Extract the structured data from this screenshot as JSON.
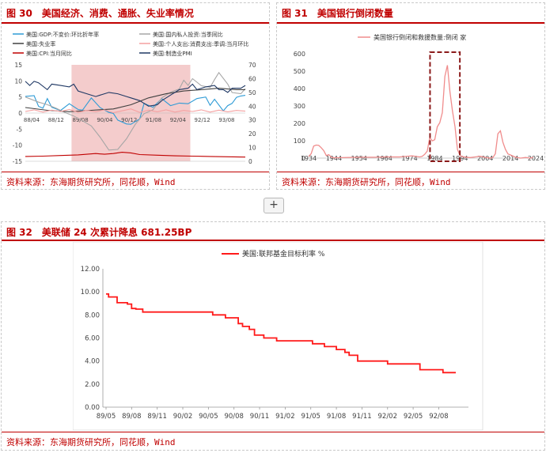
{
  "plus_button": {
    "label": "+"
  },
  "fig30": {
    "number": "图 30",
    "title": "美国经济、消费、通胀、失业率情况",
    "source": "资料来源：东海期货研究所，同花顺，Wind",
    "legend": [
      {
        "label": "美国:GDP:不变价:环比折年率",
        "color": "#2e9bd6"
      },
      {
        "label": "美国:国内私人投资:当季同比",
        "color": "#a6a6a6"
      },
      {
        "label": "美国:失业率",
        "color": "#404040"
      },
      {
        "label": "美国:个人支出:消费支出:季调:当月环比",
        "color": "#f4a0a0"
      },
      {
        "label": "美国:CPI:当月同比",
        "color": "#c00000"
      },
      {
        "label": "美国:制造业PMI",
        "color": "#1f3864"
      }
    ],
    "chart_data": {
      "type": "line",
      "x_ticks": [
        "88/04",
        "88/12",
        "89/08",
        "90/04",
        "90/12",
        "91/08",
        "92/04",
        "92/12",
        "93/08"
      ],
      "left_axis": {
        "ylim": [
          -15,
          15
        ],
        "ticks": [
          15,
          10,
          5,
          0,
          -5,
          -10,
          -15
        ]
      },
      "right_axis": {
        "ylim": [
          0,
          70
        ],
        "ticks": [
          70,
          60,
          50,
          40,
          30,
          20,
          10,
          0
        ]
      },
      "shaded_range": [
        "89/03",
        "92/05"
      ],
      "series": [
        {
          "name": "美国:GDP:不变价:环比折年率",
          "axis": "left",
          "color": "#2e9bd6",
          "points": [
            [
              0,
              5.2
            ],
            [
              2,
              5.4
            ],
            [
              3,
              2.1
            ],
            [
              4,
              1.5
            ],
            [
              5,
              4.5
            ],
            [
              6,
              1.8
            ],
            [
              8,
              0.8
            ],
            [
              10,
              2.9
            ],
            [
              12,
              1.1
            ],
            [
              13,
              0.9
            ],
            [
              15,
              4.7
            ],
            [
              17,
              1.7
            ],
            [
              19,
              0.2
            ],
            [
              20,
              -0.1
            ],
            [
              21,
              -2.2
            ],
            [
              23,
              -3.4
            ],
            [
              24,
              -3.5
            ],
            [
              26,
              -1.8
            ],
            [
              27,
              3.0
            ],
            [
              29,
              1.8
            ],
            [
              31,
              4.5
            ],
            [
              33,
              2.3
            ],
            [
              35,
              3.1
            ],
            [
              37,
              2.9
            ],
            [
              39,
              4.5
            ],
            [
              41,
              5.0
            ],
            [
              42,
              2.4
            ],
            [
              43,
              4.3
            ],
            [
              45,
              0.7
            ],
            [
              46,
              2.3
            ],
            [
              47,
              3.0
            ],
            [
              48,
              4.9
            ],
            [
              49,
              5.3
            ],
            [
              50,
              5.5
            ]
          ]
        },
        {
          "name": "美国:国内私人投资:当季同比",
          "axis": "left",
          "color": "#a6a6a6",
          "points": [
            [
              0,
              5.0
            ],
            [
              3,
              3.4
            ],
            [
              5,
              2.6
            ],
            [
              7,
              1.5
            ],
            [
              9,
              0.2
            ],
            [
              11,
              -0.9
            ],
            [
              13,
              -2.4
            ],
            [
              15,
              -4.0
            ],
            [
              17,
              -7.5
            ],
            [
              19,
              -11.5
            ],
            [
              21,
              -11.3
            ],
            [
              23,
              -8.0
            ],
            [
              25,
              -3.5
            ],
            [
              27,
              -0.2
            ],
            [
              29,
              1.0
            ],
            [
              31,
              4.7
            ],
            [
              33,
              6.5
            ],
            [
              35,
              7.5
            ],
            [
              36,
              10.2
            ],
            [
              37,
              8.6
            ],
            [
              38,
              10.7
            ],
            [
              40,
              8.5
            ],
            [
              42,
              8.0
            ],
            [
              43,
              10.4
            ],
            [
              44,
              12.6
            ],
            [
              46,
              9.0
            ],
            [
              47,
              6.4
            ],
            [
              49,
              6.0
            ],
            [
              50,
              7.6
            ]
          ]
        },
        {
          "name": "美国:失业率",
          "axis": "right",
          "color": "#404040",
          "points": [
            [
              0,
              39
            ],
            [
              5,
              37
            ],
            [
              10,
              36
            ],
            [
              15,
              37
            ],
            [
              20,
              38
            ],
            [
              24,
              41
            ],
            [
              28,
              46
            ],
            [
              32,
              49
            ],
            [
              36,
              51
            ],
            [
              40,
              52
            ],
            [
              44,
              53
            ],
            [
              48,
              52
            ],
            [
              50,
              52
            ]
          ]
        },
        {
          "name": "美国:个人支出:消费支出:季调:当月环比",
          "axis": "left",
          "color": "#f4a0a0",
          "points": [
            [
              0,
              0.5
            ],
            [
              2,
              1.0
            ],
            [
              4,
              0.3
            ],
            [
              6,
              0.9
            ],
            [
              8,
              0.5
            ],
            [
              10,
              1.1
            ],
            [
              12,
              0.2
            ],
            [
              14,
              0.8
            ],
            [
              16,
              0.4
            ],
            [
              18,
              1.0
            ],
            [
              20,
              0.1
            ],
            [
              22,
              0.7
            ],
            [
              24,
              1.3
            ],
            [
              26,
              0.2
            ],
            [
              28,
              0.9
            ],
            [
              30,
              0.4
            ],
            [
              32,
              1.0
            ],
            [
              34,
              0.3
            ],
            [
              36,
              0.8
            ],
            [
              38,
              0.5
            ],
            [
              40,
              1.0
            ],
            [
              42,
              0.3
            ],
            [
              44,
              0.9
            ],
            [
              46,
              0.4
            ],
            [
              48,
              0.8
            ],
            [
              50,
              0.6
            ]
          ]
        },
        {
          "name": "美国:CPI:当月同比",
          "axis": "left",
          "color": "#c00000",
          "points": [
            [
              0,
              -13.5
            ],
            [
              4,
              -13.4
            ],
            [
              8,
              -13.2
            ],
            [
              12,
              -13.0
            ],
            [
              16,
              -12.6
            ],
            [
              18,
              -12.8
            ],
            [
              20,
              -12.6
            ],
            [
              22,
              -12.2
            ],
            [
              24,
              -12.4
            ],
            [
              26,
              -12.9
            ],
            [
              30,
              -13.1
            ],
            [
              34,
              -13.3
            ],
            [
              38,
              -13.4
            ],
            [
              42,
              -13.5
            ],
            [
              46,
              -13.6
            ],
            [
              50,
              -13.7
            ]
          ]
        },
        {
          "name": "美国:制造业PMI",
          "axis": "right",
          "color": "#1f3864",
          "points": [
            [
              0,
              58
            ],
            [
              1,
              55
            ],
            [
              2,
              58
            ],
            [
              3,
              57
            ],
            [
              5,
              52
            ],
            [
              6,
              56
            ],
            [
              8,
              55
            ],
            [
              10,
              54
            ],
            [
              11,
              56
            ],
            [
              12,
              51
            ],
            [
              14,
              49
            ],
            [
              16,
              47
            ],
            [
              17,
              48
            ],
            [
              19,
              50
            ],
            [
              21,
              49
            ],
            [
              23,
              47
            ],
            [
              24,
              46
            ],
            [
              26,
              44
            ],
            [
              28,
              40
            ],
            [
              30,
              41
            ],
            [
              31,
              44
            ],
            [
              33,
              48
            ],
            [
              35,
              52
            ],
            [
              37,
              53
            ],
            [
              38,
              56
            ],
            [
              39,
              52
            ],
            [
              41,
              54
            ],
            [
              43,
              55
            ],
            [
              44,
              52
            ],
            [
              45,
              52
            ],
            [
              46,
              50
            ],
            [
              47,
              53
            ],
            [
              49,
              53
            ],
            [
              50,
              55
            ]
          ]
        }
      ]
    }
  },
  "fig31": {
    "number": "图 31",
    "title": "美国银行倒闭数量",
    "source": "资料来源：东海期货研究所，同花顺，Wind",
    "chart_data": {
      "type": "line",
      "legend": "美国银行倒闭和救援数量:倒闭 家",
      "x_ticks": [
        "1934",
        "1944",
        "1954",
        "1964",
        "1974",
        "1984",
        "1994",
        "2004",
        "2014",
        "2024"
      ],
      "ylim": [
        0,
        600
      ],
      "y_ticks": [
        "600",
        "500",
        "400",
        "300",
        "200",
        "100",
        "0"
      ],
      "highlight": [
        1984,
        1993
      ],
      "series": [
        {
          "name": "美国银行倒闭和救援数量:倒闭 家",
          "color": "#f08c8c",
          "points": [
            [
              1934,
              9
            ],
            [
              1935,
              25
            ],
            [
              1936,
              69
            ],
            [
              1937,
              75
            ],
            [
              1938,
              73
            ],
            [
              1939,
              60
            ],
            [
              1940,
              43
            ],
            [
              1941,
              15
            ],
            [
              1942,
              20
            ],
            [
              1943,
              5
            ],
            [
              1944,
              2
            ],
            [
              1950,
              4
            ],
            [
              1955,
              5
            ],
            [
              1960,
              5
            ],
            [
              1965,
              7
            ],
            [
              1970,
              7
            ],
            [
              1975,
              13
            ],
            [
              1978,
              7
            ],
            [
              1979,
              10
            ],
            [
              1980,
              22
            ],
            [
              1981,
              40
            ],
            [
              1982,
              119
            ],
            [
              1983,
              99
            ],
            [
              1984,
              106
            ],
            [
              1985,
              180
            ],
            [
              1986,
              204
            ],
            [
              1987,
              262
            ],
            [
              1988,
              470
            ],
            [
              1989,
              534
            ],
            [
              1990,
              382
            ],
            [
              1991,
              271
            ],
            [
              1992,
              181
            ],
            [
              1993,
              50
            ],
            [
              1994,
              15
            ],
            [
              1995,
              8
            ],
            [
              1996,
              6
            ],
            [
              1998,
              3
            ],
            [
              2000,
              7
            ],
            [
              2002,
              11
            ],
            [
              2004,
              4
            ],
            [
              2006,
              0
            ],
            [
              2007,
              3
            ],
            [
              2008,
              25
            ],
            [
              2009,
              140
            ],
            [
              2010,
              157
            ],
            [
              2011,
              92
            ],
            [
              2012,
              51
            ],
            [
              2013,
              24
            ],
            [
              2014,
              18
            ],
            [
              2016,
              5
            ],
            [
              2018,
              0
            ],
            [
              2020,
              4
            ],
            [
              2022,
              0
            ],
            [
              2023,
              5
            ]
          ]
        }
      ]
    }
  },
  "fig32": {
    "number": "图 32",
    "title": "美联储 24 次累计降息 681.25BP",
    "source": "资料来源：东海期货研究所，同花顺，Wind",
    "chart_data": {
      "type": "line",
      "legend": "美国:联邦基金目标利率 %",
      "x_ticks": [
        "89/05",
        "89/08",
        "89/11",
        "90/02",
        "90/05",
        "90/08",
        "90/11",
        "91/02",
        "91/05",
        "91/08",
        "91/11",
        "92/02",
        "92/05",
        "92/08"
      ],
      "ylim": [
        0,
        12
      ],
      "y_ticks": [
        "12.00",
        "10.00",
        "8.00",
        "6.00",
        "4.00",
        "2.00",
        "0.00"
      ],
      "series": [
        {
          "name": "美国:联邦基金目标利率 %",
          "color": "#ff1a1a",
          "steps": [
            [
              0,
              9.81
            ],
            [
              0.3,
              9.56
            ],
            [
              1.3,
              9.06
            ],
            [
              2.5,
              8.94
            ],
            [
              3.0,
              8.56
            ],
            [
              3.5,
              8.5
            ],
            [
              4.3,
              8.25
            ],
            [
              12.5,
              8.0
            ],
            [
              14.0,
              7.75
            ],
            [
              15.5,
              7.25
            ],
            [
              16.0,
              7.0
            ],
            [
              16.8,
              6.75
            ],
            [
              17.4,
              6.25
            ],
            [
              18.5,
              6.0
            ],
            [
              20.0,
              5.75
            ],
            [
              24.2,
              5.5
            ],
            [
              25.6,
              5.25
            ],
            [
              27.0,
              5.0
            ],
            [
              28.0,
              4.75
            ],
            [
              28.5,
              4.5
            ],
            [
              29.5,
              4.0
            ],
            [
              33.0,
              3.75
            ],
            [
              36.8,
              3.25
            ],
            [
              39.5,
              3.0
            ],
            [
              41.0,
              3.0
            ]
          ]
        }
      ]
    }
  }
}
